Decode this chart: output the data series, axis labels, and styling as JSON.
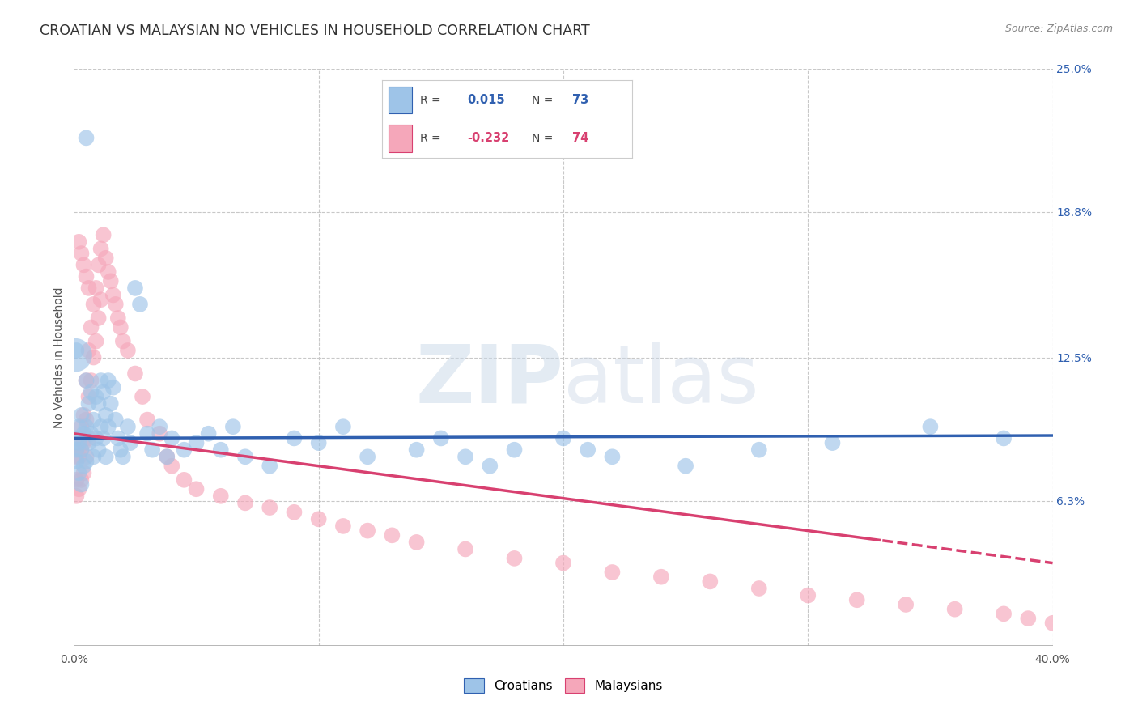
{
  "title": "CROATIAN VS MALAYSIAN NO VEHICLES IN HOUSEHOLD CORRELATION CHART",
  "source": "Source: ZipAtlas.com",
  "ylabel": "No Vehicles in Household",
  "xlim": [
    0.0,
    0.4
  ],
  "ylim": [
    0.0,
    0.25
  ],
  "croatian_color": "#9ec4e8",
  "malaysian_color": "#f5a7ba",
  "croatian_line_color": "#3060b0",
  "malaysian_line_color": "#d84070",
  "background_color": "#ffffff",
  "grid_color": "#c8c8c8",
  "watermark_color": "#ccd8e8",
  "croatian_x": [
    0.001,
    0.001,
    0.001,
    0.002,
    0.002,
    0.002,
    0.003,
    0.003,
    0.003,
    0.004,
    0.004,
    0.005,
    0.005,
    0.005,
    0.006,
    0.006,
    0.007,
    0.007,
    0.008,
    0.008,
    0.009,
    0.009,
    0.01,
    0.01,
    0.011,
    0.011,
    0.012,
    0.012,
    0.013,
    0.013,
    0.014,
    0.014,
    0.015,
    0.016,
    0.017,
    0.018,
    0.019,
    0.02,
    0.022,
    0.023,
    0.025,
    0.027,
    0.03,
    0.032,
    0.035,
    0.038,
    0.04,
    0.045,
    0.05,
    0.055,
    0.06,
    0.065,
    0.07,
    0.08,
    0.09,
    0.1,
    0.11,
    0.12,
    0.14,
    0.15,
    0.16,
    0.17,
    0.18,
    0.2,
    0.21,
    0.22,
    0.25,
    0.28,
    0.31,
    0.35,
    0.38,
    0.005,
    0.001
  ],
  "croatian_y": [
    0.09,
    0.085,
    0.08,
    0.095,
    0.088,
    0.075,
    0.1,
    0.085,
    0.07,
    0.092,
    0.078,
    0.115,
    0.095,
    0.08,
    0.105,
    0.088,
    0.11,
    0.092,
    0.098,
    0.082,
    0.108,
    0.09,
    0.105,
    0.085,
    0.115,
    0.095,
    0.11,
    0.09,
    0.1,
    0.082,
    0.115,
    0.095,
    0.105,
    0.112,
    0.098,
    0.09,
    0.085,
    0.082,
    0.095,
    0.088,
    0.155,
    0.148,
    0.092,
    0.085,
    0.095,
    0.082,
    0.09,
    0.085,
    0.088,
    0.092,
    0.085,
    0.095,
    0.082,
    0.078,
    0.09,
    0.088,
    0.095,
    0.082,
    0.085,
    0.09,
    0.082,
    0.078,
    0.085,
    0.09,
    0.085,
    0.082,
    0.078,
    0.085,
    0.088,
    0.095,
    0.09,
    0.22,
    0.128
  ],
  "malaysian_x": [
    0.001,
    0.001,
    0.001,
    0.002,
    0.002,
    0.002,
    0.003,
    0.003,
    0.003,
    0.004,
    0.004,
    0.004,
    0.005,
    0.005,
    0.005,
    0.006,
    0.006,
    0.006,
    0.007,
    0.007,
    0.008,
    0.008,
    0.009,
    0.009,
    0.01,
    0.01,
    0.011,
    0.011,
    0.012,
    0.013,
    0.014,
    0.015,
    0.016,
    0.017,
    0.018,
    0.019,
    0.02,
    0.022,
    0.025,
    0.028,
    0.03,
    0.035,
    0.038,
    0.04,
    0.045,
    0.05,
    0.06,
    0.07,
    0.08,
    0.09,
    0.1,
    0.11,
    0.12,
    0.13,
    0.14,
    0.16,
    0.18,
    0.2,
    0.22,
    0.24,
    0.26,
    0.28,
    0.3,
    0.32,
    0.34,
    0.36,
    0.38,
    0.39,
    0.4,
    0.002,
    0.003,
    0.004,
    0.005,
    0.006
  ],
  "malaysian_y": [
    0.082,
    0.072,
    0.065,
    0.09,
    0.082,
    0.068,
    0.095,
    0.085,
    0.072,
    0.1,
    0.088,
    0.075,
    0.115,
    0.098,
    0.082,
    0.128,
    0.108,
    0.09,
    0.138,
    0.115,
    0.148,
    0.125,
    0.155,
    0.132,
    0.165,
    0.142,
    0.172,
    0.15,
    0.178,
    0.168,
    0.162,
    0.158,
    0.152,
    0.148,
    0.142,
    0.138,
    0.132,
    0.128,
    0.118,
    0.108,
    0.098,
    0.092,
    0.082,
    0.078,
    0.072,
    0.068,
    0.065,
    0.062,
    0.06,
    0.058,
    0.055,
    0.052,
    0.05,
    0.048,
    0.045,
    0.042,
    0.038,
    0.036,
    0.032,
    0.03,
    0.028,
    0.025,
    0.022,
    0.02,
    0.018,
    0.016,
    0.014,
    0.012,
    0.01,
    0.175,
    0.17,
    0.165,
    0.16,
    0.155
  ]
}
